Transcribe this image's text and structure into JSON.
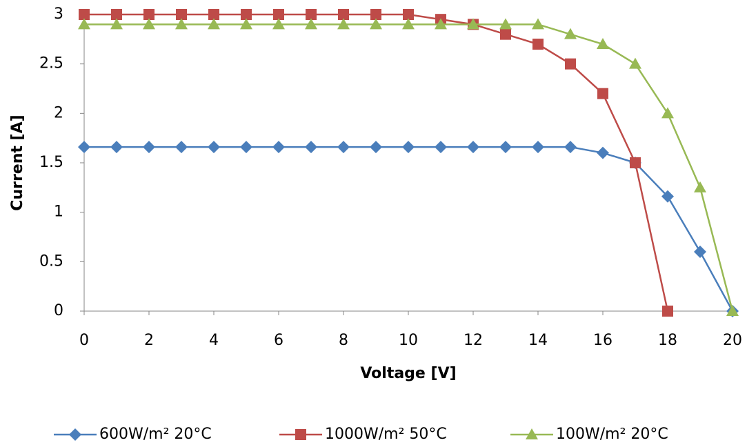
{
  "chart_data": {
    "type": "line",
    "x_label": "Voltage [V]",
    "y_label": "Current [A]",
    "x": [
      0,
      1,
      2,
      3,
      4,
      5,
      6,
      7,
      8,
      9,
      10,
      11,
      12,
      13,
      14,
      15,
      16,
      17,
      18,
      19,
      20
    ],
    "series": [
      {
        "name": "600W/m² 20°C",
        "color": "#4a7ebb",
        "marker": "diamond",
        "values": [
          1.66,
          1.66,
          1.66,
          1.66,
          1.66,
          1.66,
          1.66,
          1.66,
          1.66,
          1.66,
          1.66,
          1.66,
          1.66,
          1.66,
          1.66,
          1.66,
          1.6,
          1.5,
          1.16,
          0.6,
          0
        ]
      },
      {
        "name": "1000W/m² 50°C",
        "color": "#be4b48",
        "marker": "square",
        "values": [
          3,
          3,
          3,
          3,
          3,
          3,
          3,
          3,
          3,
          3,
          3,
          2.95,
          2.9,
          2.8,
          2.7,
          2.5,
          2.2,
          1.5,
          0,
          null,
          null
        ]
      },
      {
        "name": "100W/m² 20°C",
        "color": "#98b954",
        "marker": "triangle",
        "values": [
          2.9,
          2.9,
          2.9,
          2.9,
          2.9,
          2.9,
          2.9,
          2.9,
          2.9,
          2.9,
          2.9,
          2.9,
          2.9,
          2.9,
          2.9,
          2.8,
          2.7,
          2.5,
          2.0,
          1.25,
          0
        ]
      }
    ],
    "xlim": [
      0,
      20
    ],
    "xticks": [
      0,
      2,
      4,
      6,
      8,
      10,
      12,
      14,
      16,
      18,
      20
    ],
    "ylim": [
      0,
      3
    ],
    "yticks": [
      0,
      0.5,
      1,
      1.5,
      2,
      2.5,
      3
    ],
    "grid": false,
    "legend": "bottom"
  }
}
